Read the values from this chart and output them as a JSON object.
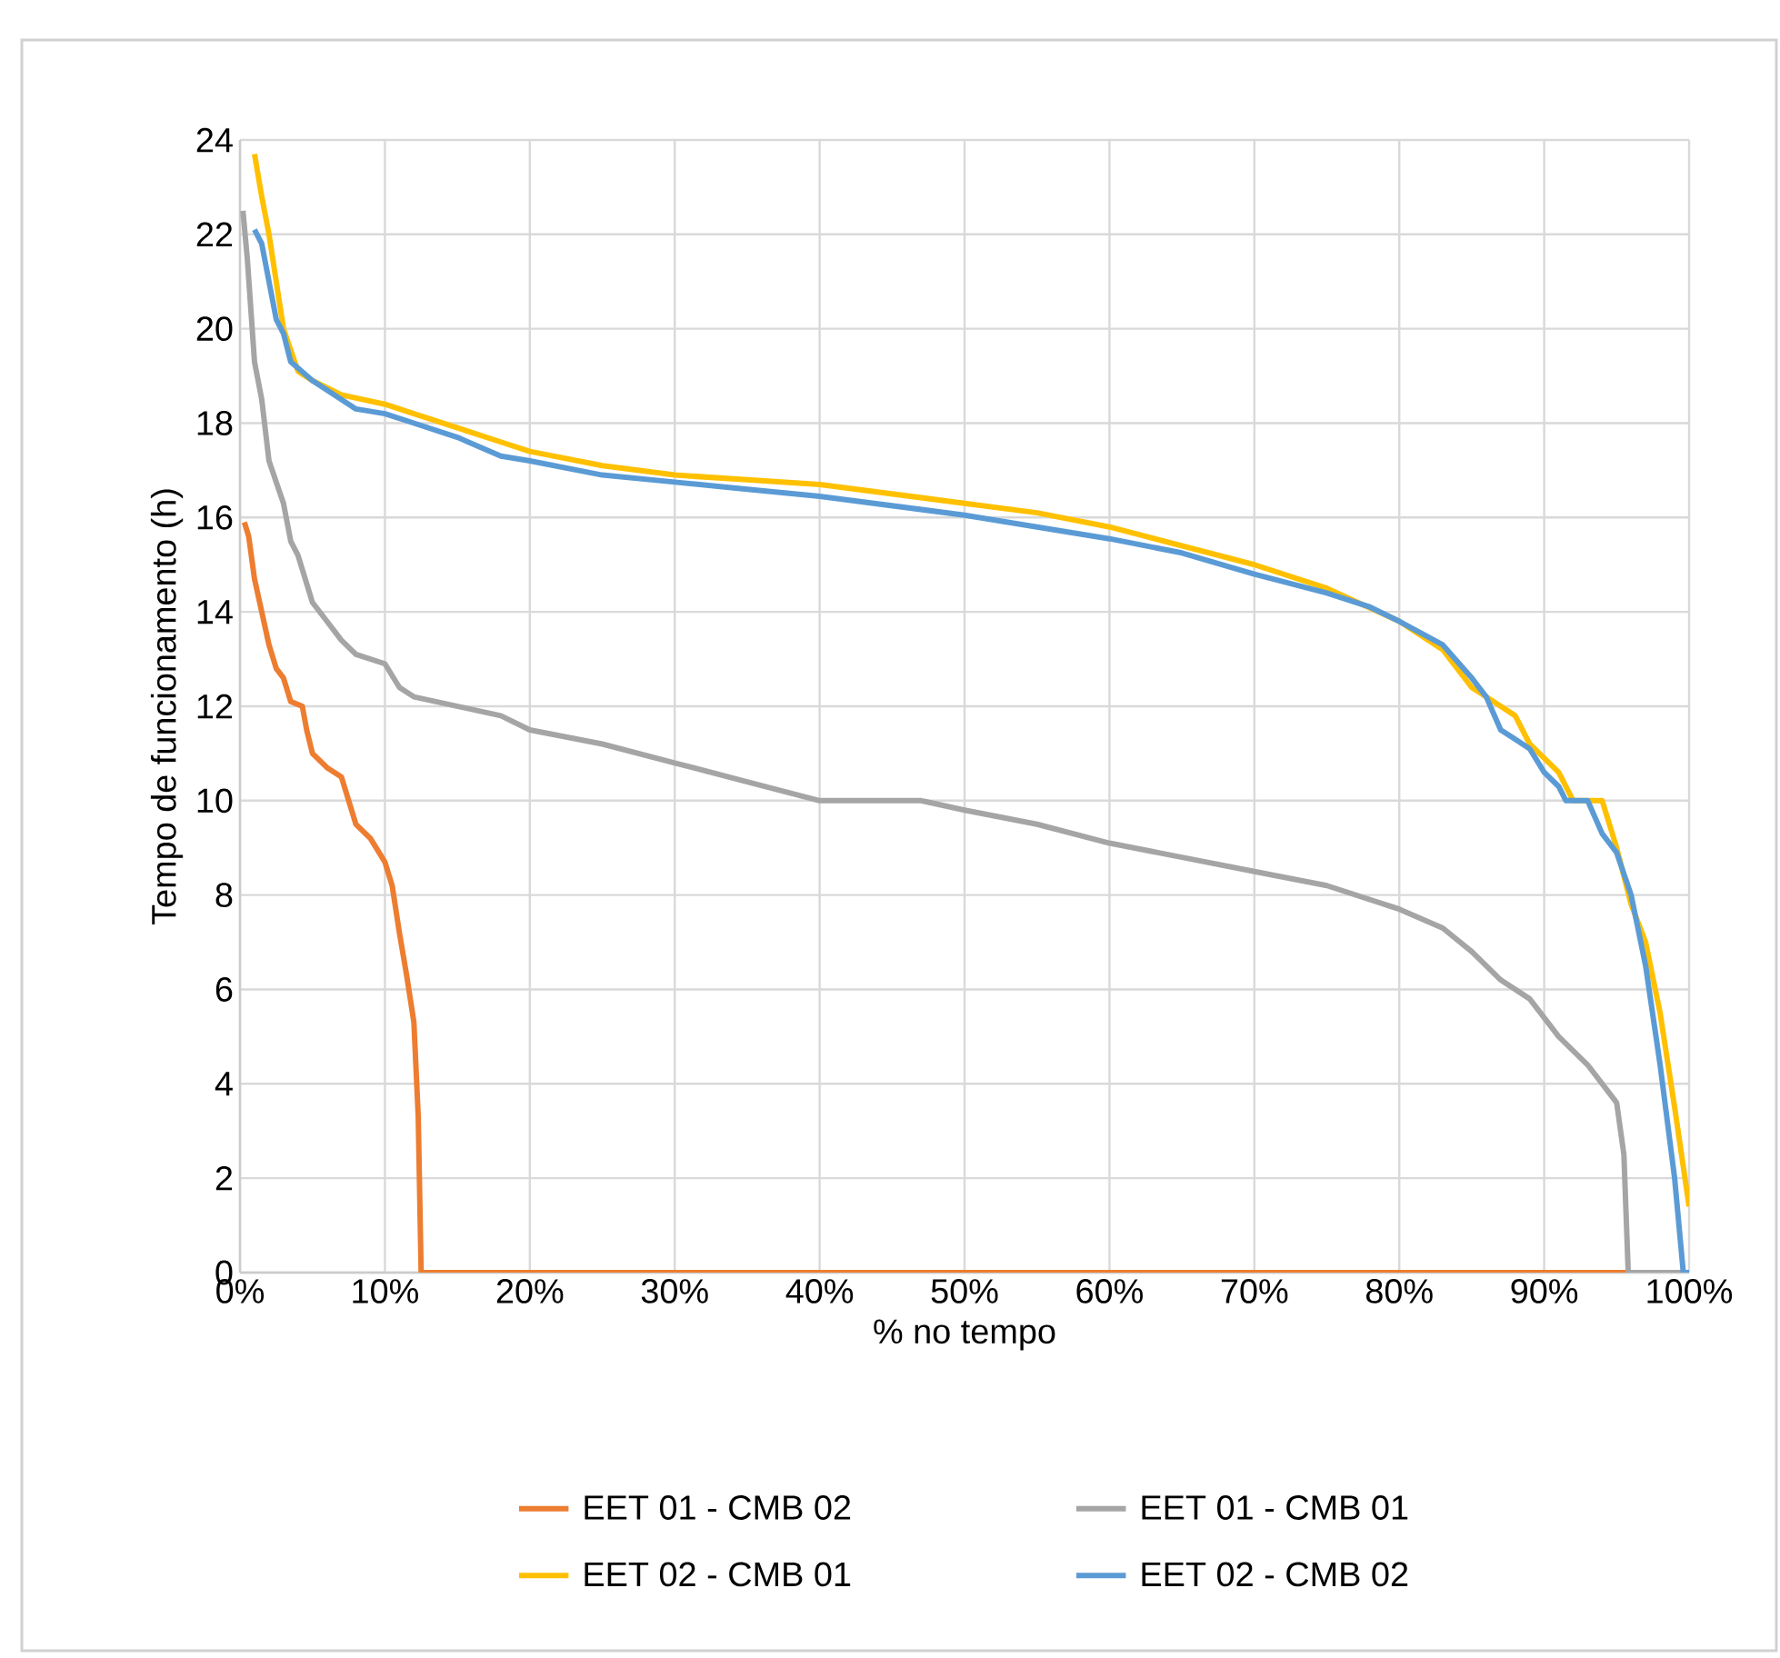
{
  "chart_data": {
    "type": "line",
    "xlabel": "% no tempo",
    "ylabel": "Tempo de funcionamento (h)",
    "xlim": [
      0,
      100
    ],
    "ylim": [
      0,
      24
    ],
    "xticks": [
      {
        "value": 0,
        "label": "0%"
      },
      {
        "value": 10,
        "label": "10%"
      },
      {
        "value": 20,
        "label": "20%"
      },
      {
        "value": 30,
        "label": "30%"
      },
      {
        "value": 40,
        "label": "40%"
      },
      {
        "value": 50,
        "label": "50%"
      },
      {
        "value": 60,
        "label": "60%"
      },
      {
        "value": 70,
        "label": "70%"
      },
      {
        "value": 80,
        "label": "80%"
      },
      {
        "value": 90,
        "label": "90%"
      },
      {
        "value": 100,
        "label": "100%"
      }
    ],
    "yticks": [
      0,
      2,
      4,
      6,
      8,
      10,
      12,
      14,
      16,
      18,
      20,
      22,
      24
    ],
    "grid": true,
    "legend": "bottom",
    "marker": "none",
    "line_style": "solid",
    "series": [
      {
        "name": "EET 01 - CMB 02",
        "color": "#ed7d31",
        "x": [
          0.3,
          0.6,
          1,
          1.5,
          2,
          2.5,
          3,
          3.5,
          4.3,
          4.6,
          5,
          6,
          7,
          7.5,
          8,
          9,
          10,
          10.5,
          11,
          11.5,
          12,
          12.3,
          12.5,
          96
        ],
        "values": [
          15.9,
          15.6,
          14.7,
          14,
          13.3,
          12.8,
          12.6,
          12.1,
          12,
          11.5,
          11,
          10.7,
          10.5,
          10,
          9.5,
          9.2,
          8.7,
          8.2,
          7.2,
          6.3,
          5.3,
          3.3,
          0,
          0
        ]
      },
      {
        "name": "EET 01 - CMB 01",
        "color": "#a5a5a5",
        "x": [
          0.2,
          0.5,
          1,
          1.5,
          2,
          3,
          3.5,
          4,
          5,
          6,
          7,
          8,
          10,
          11,
          12,
          15,
          18,
          20,
          25,
          30,
          35,
          40,
          47,
          50,
          55,
          60,
          65,
          70,
          75,
          80,
          83,
          85,
          87,
          89,
          91,
          93,
          95,
          95.5,
          95.8,
          100
        ],
        "values": [
          22.5,
          21.5,
          19.3,
          18.5,
          17.2,
          16.3,
          15.5,
          15.2,
          14.2,
          13.8,
          13.4,
          13.1,
          12.9,
          12.4,
          12.2,
          12,
          11.8,
          11.5,
          11.2,
          10.8,
          10.4,
          10,
          10,
          9.8,
          9.5,
          9.1,
          8.8,
          8.5,
          8.2,
          7.7,
          7.3,
          6.8,
          6.2,
          5.8,
          5,
          4.4,
          3.6,
          2.5,
          0,
          0
        ]
      },
      {
        "name": "EET 02 - CMB 01",
        "color": "#ffc000",
        "x": [
          1,
          1.5,
          2,
          2.5,
          3,
          4,
          5,
          7,
          10,
          12,
          15,
          18,
          20,
          25,
          30,
          35,
          40,
          45,
          50,
          55,
          60,
          65,
          70,
          75,
          80,
          83,
          85,
          87,
          88,
          89,
          91,
          92,
          94,
          95,
          96,
          97,
          98,
          99,
          100
        ],
        "values": [
          23.7,
          22.8,
          22,
          21,
          20,
          19.1,
          18.9,
          18.6,
          18.4,
          18.2,
          17.9,
          17.6,
          17.4,
          17.1,
          16.9,
          16.8,
          16.7,
          16.5,
          16.3,
          16.1,
          15.8,
          15.4,
          15,
          14.5,
          13.8,
          13.2,
          12.4,
          12,
          11.8,
          11.2,
          10.6,
          10,
          10,
          9,
          7.8,
          7,
          5.5,
          3.5,
          1.4
        ]
      },
      {
        "name": "EET 02 - CMB 02",
        "color": "#5b9bd5",
        "x": [
          1,
          1.5,
          2,
          2.5,
          3,
          3.5,
          5,
          7,
          8,
          10,
          12,
          15,
          18,
          20,
          25,
          30,
          35,
          40,
          45,
          50,
          55,
          60,
          65,
          70,
          75,
          78,
          80,
          83,
          85,
          86,
          87,
          88,
          89,
          90,
          91,
          91.5,
          93,
          94,
          95,
          96,
          97,
          98,
          99,
          99.6,
          100
        ],
        "values": [
          22.1,
          21.8,
          21,
          20.2,
          19.9,
          19.3,
          18.9,
          18.5,
          18.3,
          18.2,
          18,
          17.7,
          17.3,
          17.2,
          16.9,
          16.75,
          16.6,
          16.45,
          16.25,
          16.05,
          15.8,
          15.55,
          15.25,
          14.8,
          14.4,
          14.1,
          13.8,
          13.3,
          12.6,
          12.2,
          11.5,
          11.3,
          11.1,
          10.6,
          10.3,
          10,
          10,
          9.3,
          8.9,
          8,
          6.5,
          4.4,
          2,
          0,
          0
        ]
      }
    ]
  }
}
